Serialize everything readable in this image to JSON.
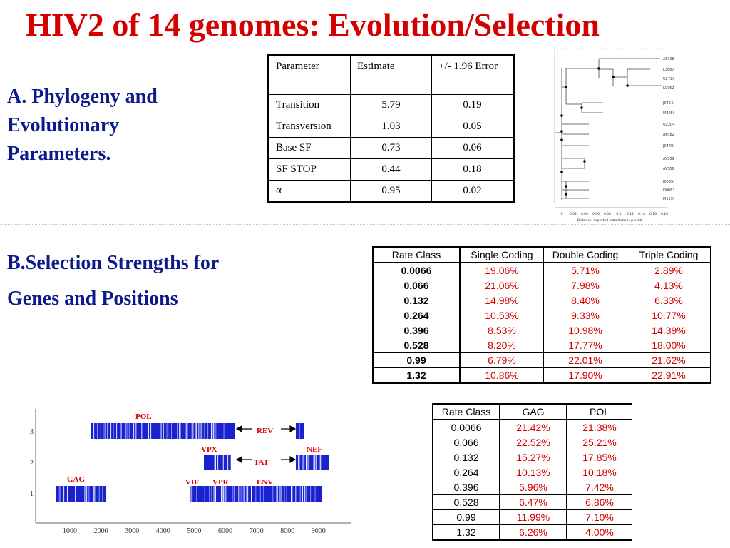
{
  "title": "HIV2  of 14 genomes: Evolution/Selection",
  "sectionA": {
    "line1": "A. Phylogeny and",
    "line2": "Evolutionary",
    "line3": "Parameters."
  },
  "sectionB": {
    "line1": "B.Selection Strengths for",
    "line2": "Genes and Positions"
  },
  "params_table": {
    "headers": [
      "Parameter",
      "Estimate",
      "+/- 1.96 Error"
    ],
    "rows": [
      [
        "Transition",
        "5.79",
        "0.19"
      ],
      [
        "Transversion",
        "1.03",
        "0.05"
      ],
      [
        "Base SF",
        "0.73",
        "0.06"
      ],
      [
        "SF STOP",
        "0.44",
        "0.18"
      ],
      [
        "α",
        "0.95",
        "0.02"
      ]
    ]
  },
  "coding_rates_table": {
    "headers": [
      "Rate Class",
      "Single Coding",
      "Double Coding",
      "Triple Coding"
    ],
    "rows": [
      [
        "0.0066",
        "19.06%",
        "5.71%",
        "2.89%"
      ],
      [
        "0.066",
        "21.06%",
        "7.98%",
        "4.13%"
      ],
      [
        "0.132",
        "14.98%",
        "8.40%",
        "6.33%"
      ],
      [
        "0.264",
        "10.53%",
        "9.33%",
        "10.77%"
      ],
      [
        "0.396",
        "8.53%",
        "10.98%",
        "14.39%"
      ],
      [
        "0.528",
        "8.20%",
        "17.77%",
        "18.00%"
      ],
      [
        "0.99",
        "6.79%",
        "22.01%",
        "21.62%"
      ],
      [
        "1.32",
        "10.86%",
        "17.90%",
        "22.91%"
      ]
    ]
  },
  "gene_rates_table": {
    "headers": [
      "Rate Class",
      "GAG",
      "POL"
    ],
    "rows": [
      [
        "0.0066",
        "21.42%",
        "21.38%"
      ],
      [
        "0.066",
        "22.52%",
        "25.21%"
      ],
      [
        "0.132",
        "15.27%",
        "17.85%"
      ],
      [
        "0.264",
        "10.13%",
        "10.18%"
      ],
      [
        "0.396",
        "5.96%",
        "7.42%"
      ],
      [
        "0.528",
        "6.47%",
        "6.86%"
      ],
      [
        "0.99",
        "11.99%",
        "7.10%"
      ],
      [
        "1.32",
        "6.26%",
        "4.00%"
      ]
    ]
  },
  "phylo_tree": {
    "taxa": [
      "AF208027",
      "L36874",
      "U27200",
      "L07625",
      "J04542",
      "M30502",
      "U22047",
      "AF082339",
      "J04498",
      "AY509259",
      "AY509260",
      "J03654",
      "D00835",
      "M15390"
    ],
    "axis_ticks": [
      "0",
      "0.02",
      "0.04",
      "0.06",
      "0.08",
      "0.1",
      "0.12",
      "0.14",
      "0.16",
      "0.18"
    ],
    "axis_label": "Distance: expected substitutions per site"
  },
  "genome_map": {
    "y_ticks": [
      "3",
      "2",
      "1"
    ],
    "x_ticks": [
      "1000",
      "2000",
      "3000",
      "4000",
      "5000",
      "6000",
      "7000",
      "8000",
      "9000"
    ],
    "gene_labels": [
      "POL",
      "REV",
      "VPX",
      "NEF",
      "TAT",
      "GAG",
      "VIF",
      "VPR",
      "ENV"
    ],
    "colors": {
      "gene_fill": "#1a22d0",
      "label": "#d40000"
    }
  }
}
